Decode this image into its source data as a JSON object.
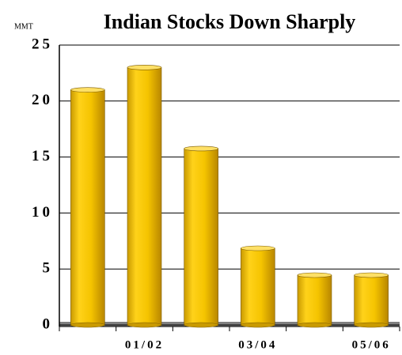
{
  "chart_data": {
    "type": "bar",
    "title": "Indian Stocks Down Sharply",
    "unit_label": "MMT",
    "categories": [
      null,
      "01/02",
      null,
      "03/04",
      null,
      "05/06"
    ],
    "values": [
      21.0,
      23.0,
      15.75,
      6.85,
      4.45,
      4.45
    ],
    "color": "#f5c400",
    "ylim": [
      0,
      25
    ],
    "yticks": [
      0,
      5,
      10,
      15,
      20,
      25
    ],
    "grid": true
  }
}
